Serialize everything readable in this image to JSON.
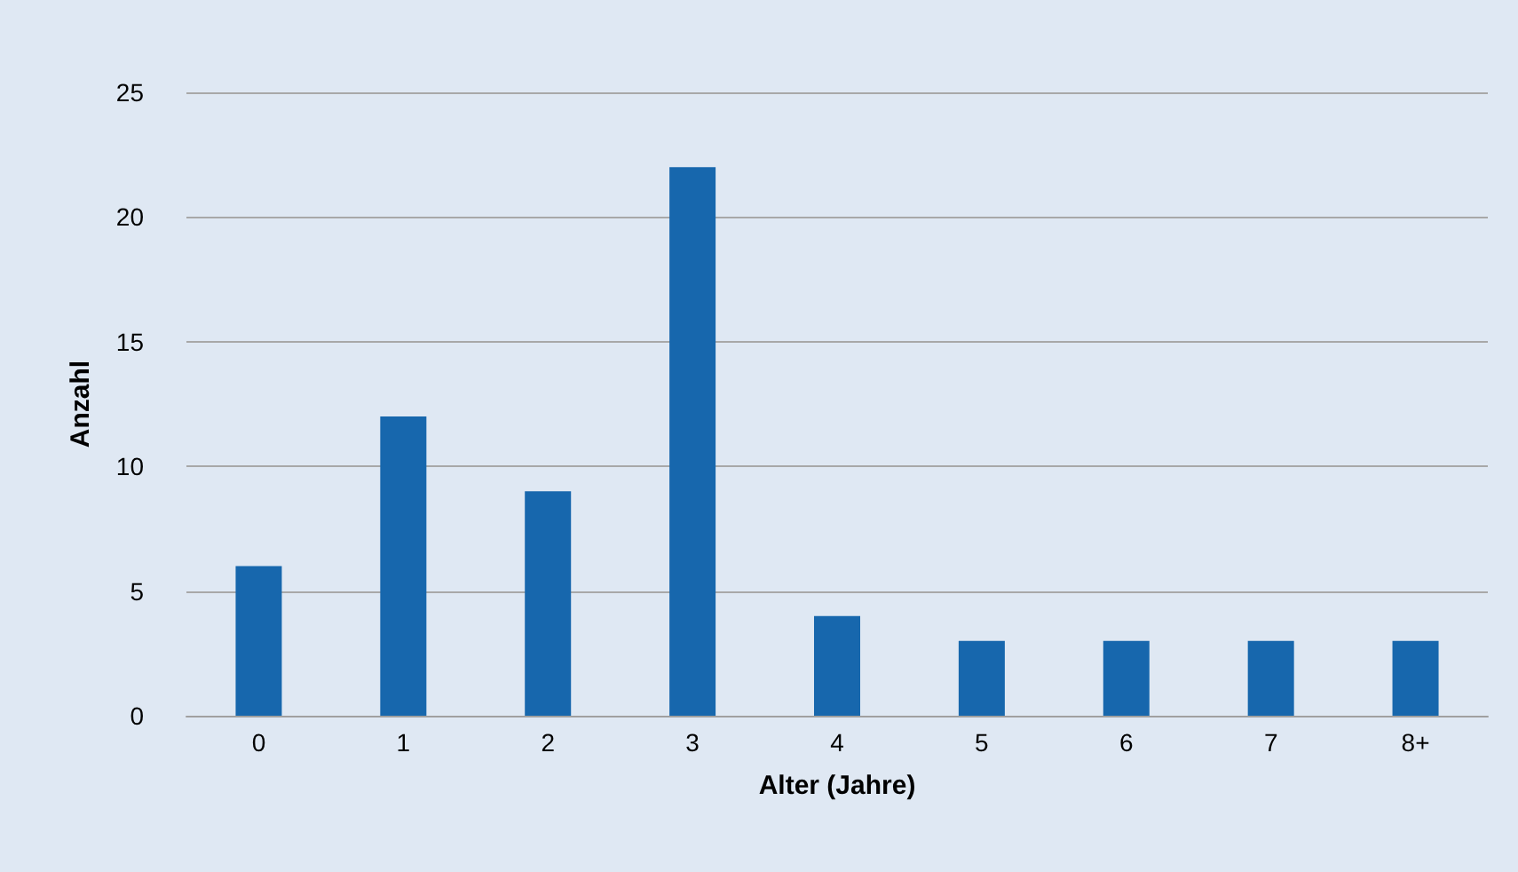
{
  "chart_data": {
    "type": "bar",
    "xlabel": "Alter (Jahre)",
    "ylabel": "Anzahl",
    "categories": [
      "0",
      "1",
      "2",
      "3",
      "4",
      "5",
      "6",
      "7",
      "8+"
    ],
    "values": [
      6,
      12,
      9,
      22,
      4,
      3,
      3,
      3,
      3
    ],
    "color": "#1767ad",
    "ylim": [
      0,
      25
    ],
    "yticks": [
      0,
      5,
      10,
      15,
      20,
      25
    ],
    "grid": "y"
  }
}
